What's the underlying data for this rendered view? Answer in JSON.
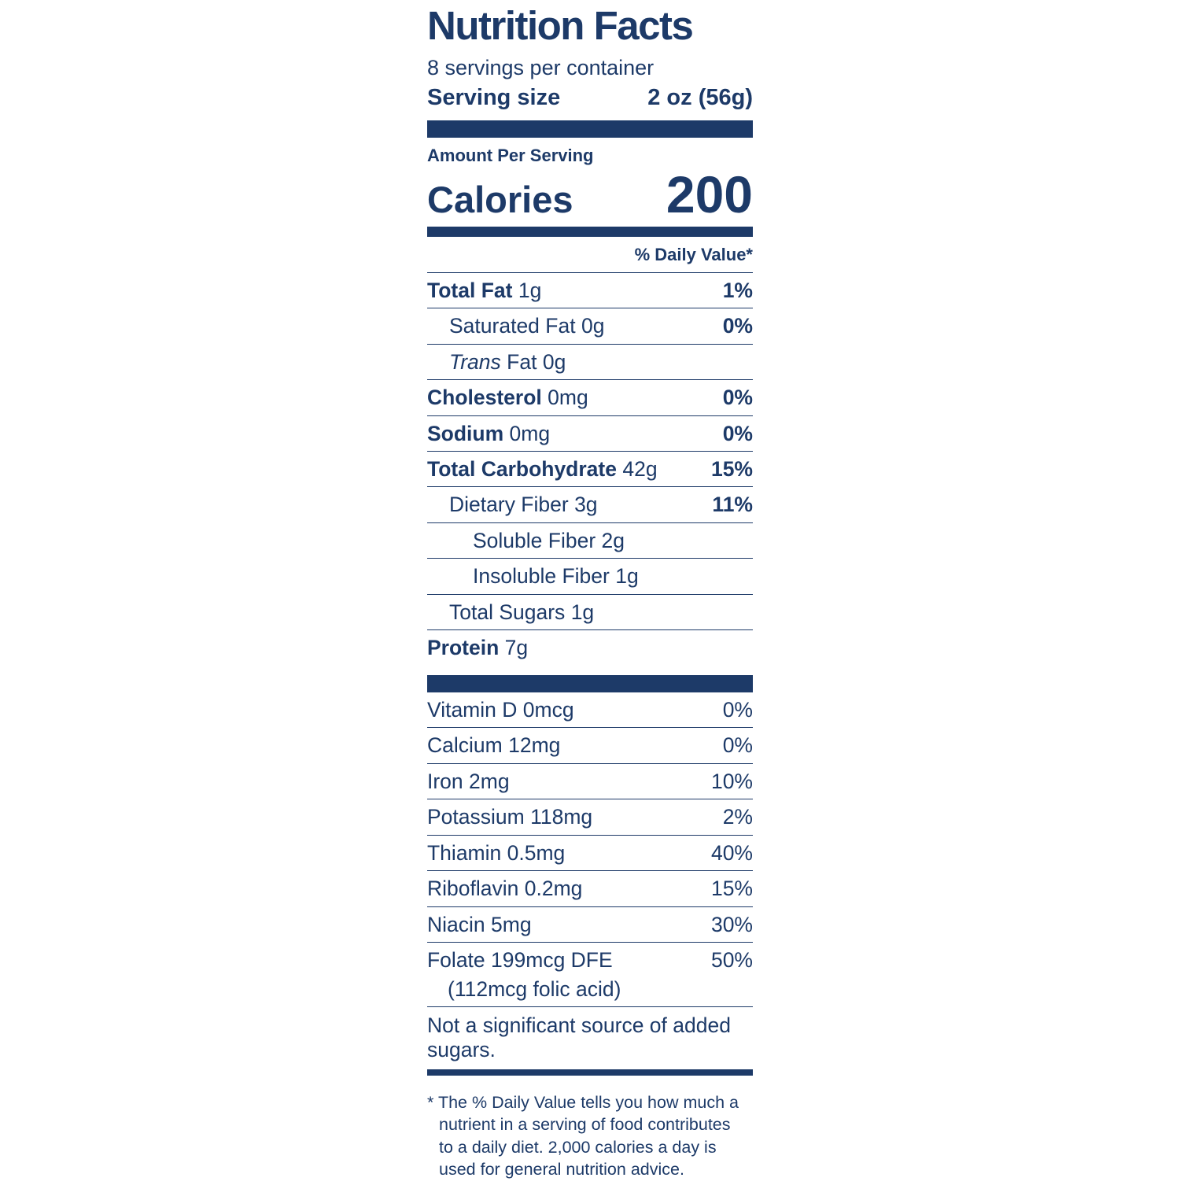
{
  "accent_color": "#1d3a68",
  "label": {
    "title": "Nutrition Facts",
    "servings_per_container": "8 servings per container",
    "serving_size": {
      "label": "Serving size",
      "value": "2 oz (56g)"
    },
    "amount_per_serving": "Amount Per Serving",
    "calories": {
      "label": "Calories",
      "value": "200"
    },
    "daily_value_header": "% Daily Value*",
    "nutrients": [
      {
        "name": "Total Fat",
        "amount": "1g",
        "dv": "1%"
      },
      {
        "name": "Saturated Fat",
        "amount": "0g",
        "dv": "0%"
      },
      {
        "prefix": "Trans",
        "name": "Fat",
        "amount": "0g",
        "dv": ""
      },
      {
        "name": "Cholesterol",
        "amount": "0mg",
        "dv": "0%"
      },
      {
        "name": "Sodium",
        "amount": "0mg",
        "dv": "0%"
      },
      {
        "name": "Total Carbohydrate",
        "amount": "42g",
        "dv": "15%"
      },
      {
        "name": "Dietary Fiber",
        "amount": "3g",
        "dv": "11%"
      },
      {
        "name": "Soluble Fiber",
        "amount": "2g",
        "dv": ""
      },
      {
        "name": "Insoluble Fiber",
        "amount": "1g",
        "dv": ""
      },
      {
        "name": "Total Sugars",
        "amount": "1g",
        "dv": ""
      },
      {
        "name": "Protein",
        "amount": "7g",
        "dv": ""
      }
    ],
    "micronutrients": [
      {
        "name": "Vitamin D",
        "amount": "0mcg",
        "dv": "0%"
      },
      {
        "name": "Calcium",
        "amount": "12mg",
        "dv": "0%"
      },
      {
        "name": "Iron",
        "amount": "2mg",
        "dv": "10%"
      },
      {
        "name": "Potassium",
        "amount": "118mg",
        "dv": "2%"
      },
      {
        "name": "Thiamin",
        "amount": "0.5mg",
        "dv": "40%"
      },
      {
        "name": "Riboflavin",
        "amount": "0.2mg",
        "dv": "15%"
      },
      {
        "name": "Niacin",
        "amount": "5mg",
        "dv": "30%"
      },
      {
        "name": "Folate",
        "amount": "199mcg DFE",
        "note": "(112mcg folic acid)",
        "dv": "50%"
      }
    ],
    "added_sugars_note": "Not a significant source of added sugars.",
    "footnote": "* The % Daily Value tells you how much a nutrient in a serving of food contributes to a daily diet. 2,000 calories a day is used for general nutrition advice."
  }
}
